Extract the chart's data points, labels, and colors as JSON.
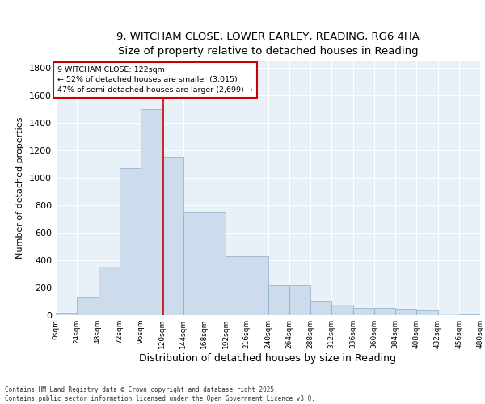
{
  "title1": "9, WITCHAM CLOSE, LOWER EARLEY, READING, RG6 4HA",
  "title2": "Size of property relative to detached houses in Reading",
  "xlabel": "Distribution of detached houses by size in Reading",
  "ylabel": "Number of detached properties",
  "bin_edges": [
    0,
    24,
    48,
    72,
    96,
    120,
    144,
    168,
    192,
    216,
    240,
    264,
    288,
    312,
    336,
    360,
    384,
    408,
    432,
    456,
    480
  ],
  "bar_heights": [
    20,
    130,
    350,
    1070,
    1500,
    1150,
    750,
    750,
    430,
    430,
    215,
    215,
    100,
    75,
    55,
    55,
    40,
    35,
    10,
    5
  ],
  "bar_color": "#ccdcec",
  "bar_edge_color": "#8aacc8",
  "property_size": 122,
  "property_line_color": "#cc0000",
  "annotation_text": "9 WITCHAM CLOSE: 122sqm\n← 52% of detached houses are smaller (3,015)\n47% of semi-detached houses are larger (2,699) →",
  "annotation_box_color": "#ffffff",
  "annotation_box_edge_color": "#cc0000",
  "ylim": [
    0,
    1850
  ],
  "yticks": [
    0,
    200,
    400,
    600,
    800,
    1000,
    1200,
    1400,
    1600,
    1800
  ],
  "background_color": "#e8f0f8",
  "grid_color": "#ffffff",
  "footer_line1": "Contains HM Land Registry data © Crown copyright and database right 2025.",
  "footer_line2": "Contains public sector information licensed under the Open Government Licence v3.0."
}
